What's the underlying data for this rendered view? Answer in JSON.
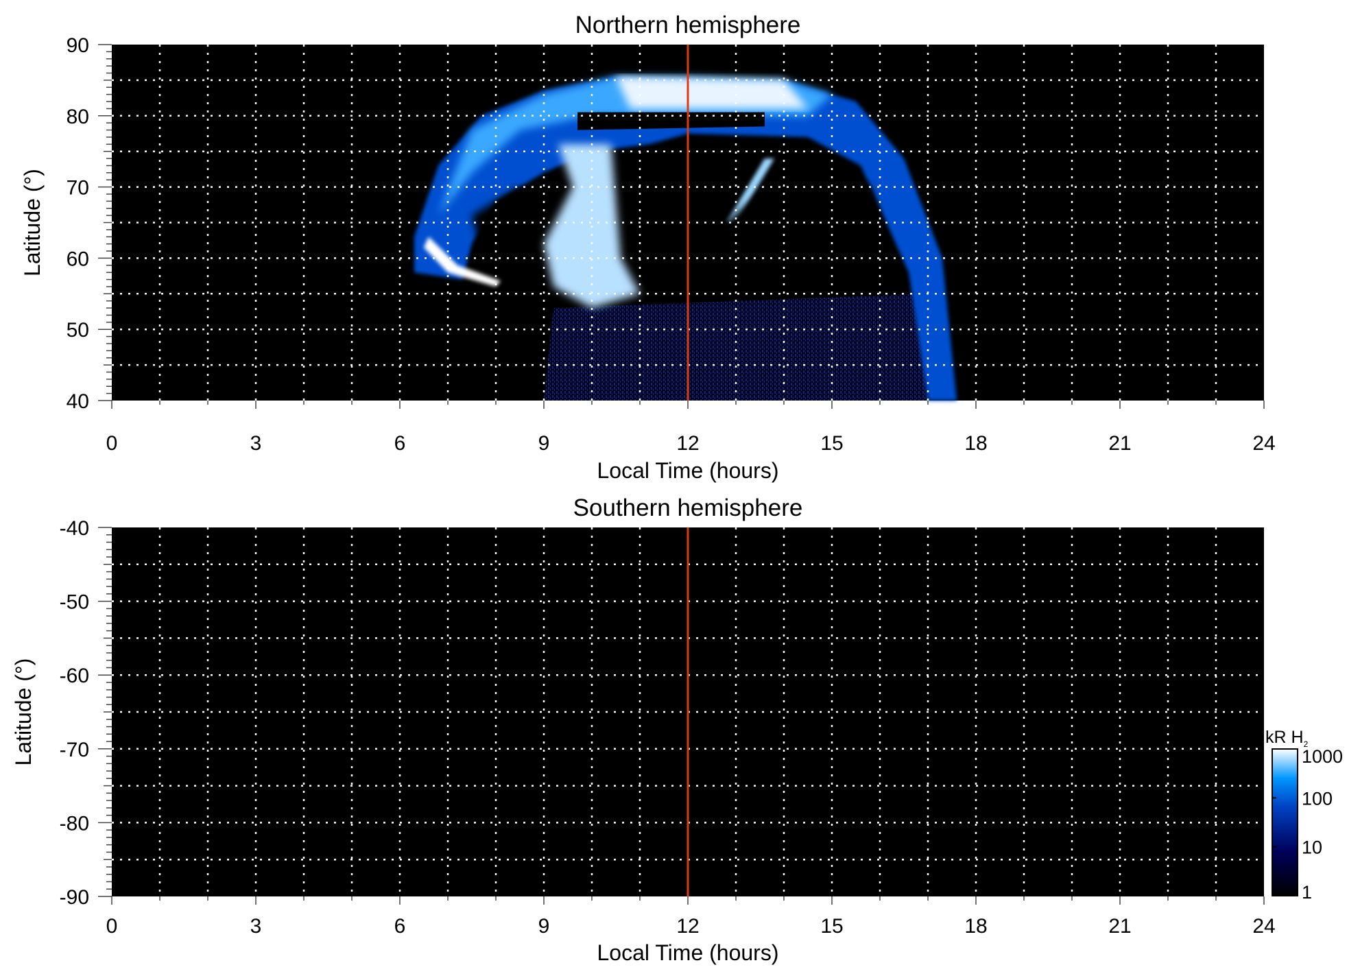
{
  "chart_data": [
    {
      "type": "heatmap",
      "title": "Northern hemisphere",
      "xlabel": "Local Time (hours)",
      "ylabel": "Latitude (°)",
      "xlim": [
        0,
        24
      ],
      "ylim": [
        40,
        90
      ],
      "xticks": [
        "0",
        "3",
        "6",
        "9",
        "12",
        "15",
        "18",
        "21",
        "24"
      ],
      "yticks": [
        "40",
        "50",
        "60",
        "70",
        "80",
        "90"
      ],
      "grid": true,
      "marker_line": {
        "x": 12,
        "color": "#e03a10"
      },
      "description_values": "auroral emission present between ~6 and ~17.5 h local time, latitudes ~55–86°"
    },
    {
      "type": "heatmap",
      "title": "Southern hemisphere",
      "xlabel": "Local Time (hours)",
      "ylabel": "Latitude (°)",
      "xlim": [
        0,
        24
      ],
      "ylim": [
        -90,
        -40
      ],
      "xticks": [
        "0",
        "3",
        "6",
        "9",
        "12",
        "15",
        "18",
        "21",
        "24"
      ],
      "yticks": [
        "-40",
        "-50",
        "-60",
        "-70",
        "-80",
        "-90"
      ],
      "grid": true,
      "marker_line": {
        "x": 12,
        "color": "#e03a10"
      }
    }
  ],
  "colorbar": {
    "label": "kR H",
    "label_sub": "2",
    "scale": "log",
    "ticks": [
      "1",
      "10",
      "100",
      "1000"
    ],
    "colors": [
      "#000000",
      "#00005a",
      "#0040c0",
      "#0096ff",
      "#ffffff"
    ]
  }
}
